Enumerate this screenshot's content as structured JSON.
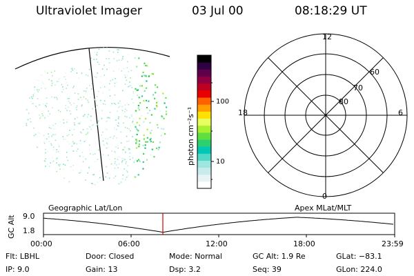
{
  "header": {
    "instrument": "Ultraviolet Imager",
    "date": "03 Jul 00",
    "time": "08:18:29 UT"
  },
  "colorbar": {
    "label": "photon cm⁻²s⁻¹",
    "ticks": [
      "100",
      "10"
    ],
    "colors": [
      "#ffffff",
      "#e8f4f4",
      "#c8ecec",
      "#a0e6e0",
      "#50d8c8",
      "#00c8b4",
      "#2cd070",
      "#60e040",
      "#a8f030",
      "#e8ff60",
      "#ffe000",
      "#ffa000",
      "#ff6000",
      "#e80000",
      "#c00020",
      "#900040",
      "#60004c",
      "#300044",
      "#000000"
    ]
  },
  "polar": {
    "mlt_labels": [
      "12",
      "18",
      "6",
      "0"
    ],
    "lat_labels": [
      "60",
      "70",
      "80"
    ]
  },
  "timeline": {
    "left_title": "Geographic Lat/Lon",
    "right_title": "Apex MLat/MLT",
    "axis_title": "GC Alt",
    "y_labels": [
      "9.0",
      "1.8"
    ],
    "x_labels": [
      "00:00",
      "06:00",
      "12:00",
      "18:00",
      "23:59"
    ],
    "marker_color": "#d00000"
  },
  "info": {
    "flt": "Flt: LBHL",
    "ip": "IP:  9.0",
    "door": "Door: Closed",
    "gain": "Gain: 13",
    "mode": "Mode: Normal",
    "dsp": "Dsp:    3.2",
    "gcalt": "GC Alt: 1.9 Re",
    "seq": "Seq: 39",
    "glat": "GLat: −83.1",
    "glon": "GLon: 224.0"
  }
}
